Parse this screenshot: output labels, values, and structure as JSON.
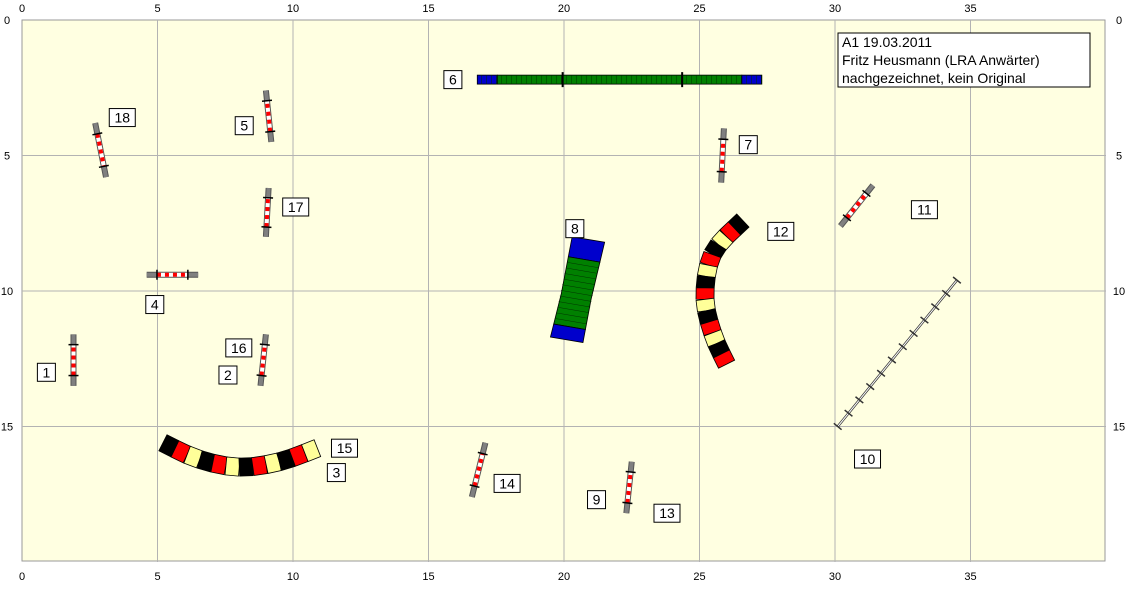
{
  "info_box": {
    "lines": [
      "A1 19.03.2011",
      "Fritz Heusmann (LRA Anwärter)",
      "nachgezeichnet, kein Original"
    ]
  },
  "axis": {
    "x_ticks": [
      "0",
      "5",
      "10",
      "15",
      "20",
      "25",
      "30",
      "35"
    ],
    "y_ticks": [
      "0",
      "5",
      "10",
      "15"
    ]
  },
  "colors": {
    "field": "#ffffe1",
    "grid": "#b3b3b3",
    "bar_red": "#ff0000",
    "bar_white": "#ffffff",
    "pole": "#808080",
    "tunnel_black": "#000000",
    "tunnel_red": "#ff0000",
    "tunnel_yellow": "#ffff99",
    "walk_green": "#008000",
    "walk_blue": "#0000cc"
  },
  "field": {
    "width": 40,
    "height": 20
  },
  "jumps": [
    {
      "label": "1",
      "x1": 1.9,
      "y1": 13.5,
      "x2": 1.9,
      "y2": 11.6,
      "lx": 0.9,
      "ly": 13.0
    },
    {
      "label": "2",
      "x1": 8.8,
      "y1": 13.5,
      "x2": 9.0,
      "y2": 11.6,
      "lx": 7.6,
      "ly": 13.1
    },
    {
      "label": "4",
      "x1": 4.6,
      "y1": 9.4,
      "x2": 6.5,
      "y2": 9.4,
      "lx": 4.9,
      "ly": 10.5
    },
    {
      "label": "5",
      "x1": 9.2,
      "y1": 4.5,
      "x2": 9.0,
      "y2": 2.6,
      "lx": 8.2,
      "ly": 3.9
    },
    {
      "label": "7",
      "x1": 25.8,
      "y1": 6.0,
      "x2": 25.9,
      "y2": 4.0,
      "lx": 26.8,
      "ly": 4.6
    },
    {
      "label": "9",
      "x1": 22.3,
      "y1": 18.2,
      "x2": 22.5,
      "y2": 16.3,
      "lx": 21.2,
      "ly": 17.7
    },
    {
      "label": "11",
      "x1": 30.2,
      "y1": 7.6,
      "x2": 31.4,
      "y2": 6.1,
      "lx": 33.3,
      "ly": 7.0
    },
    {
      "label": "13",
      "x1": 22.3,
      "y1": 18.2,
      "x2": 22.5,
      "y2": 16.3,
      "lx": 23.8,
      "ly": 18.2
    },
    {
      "label": "14",
      "x1": 16.6,
      "y1": 17.6,
      "x2": 17.1,
      "y2": 15.6,
      "lx": 17.9,
      "ly": 17.1
    },
    {
      "label": "16",
      "x1": 8.8,
      "y1": 13.5,
      "x2": 9.0,
      "y2": 11.6,
      "lx": 8.0,
      "ly": 12.1
    },
    {
      "label": "17",
      "x1": 9.0,
      "y1": 8.0,
      "x2": 9.1,
      "y2": 6.2,
      "lx": 10.1,
      "ly": 6.9
    },
    {
      "label": "18",
      "x1": 2.7,
      "y1": 3.8,
      "x2": 3.1,
      "y2": 5.8,
      "lx": 3.7,
      "ly": 3.6
    }
  ],
  "tunnel_a": {
    "labels": [
      {
        "text": "3",
        "lx": 11.6,
        "ly": 16.7
      },
      {
        "text": "15",
        "lx": 11.9,
        "ly": 15.8
      }
    ],
    "points": [
      [
        5.2,
        15.6
      ],
      [
        6.5,
        16.2
      ],
      [
        8.0,
        16.5
      ],
      [
        9.5,
        16.3
      ],
      [
        10.9,
        15.8
      ]
    ],
    "segments": 12
  },
  "tunnel_b": {
    "label": "12",
    "lx": 28.0,
    "ly": 7.8,
    "points": [
      [
        26.6,
        7.4
      ],
      [
        25.5,
        8.6
      ],
      [
        25.2,
        10.2
      ],
      [
        25.5,
        11.6
      ],
      [
        26.0,
        12.7
      ]
    ],
    "segments": 14
  },
  "dogwalk": {
    "label": "6",
    "lx": 15.9,
    "ly": 2.2,
    "x1": 16.8,
    "x2": 27.3,
    "y": 2.2
  },
  "tilt": {
    "label": "8",
    "lx": 20.4,
    "ly": 7.7
  },
  "weave": {
    "label": "10",
    "lx": 31.2,
    "ly": 16.2,
    "x1": 30.1,
    "y1": 15.0,
    "x2": 34.5,
    "y2": 9.6,
    "poles": 12
  }
}
